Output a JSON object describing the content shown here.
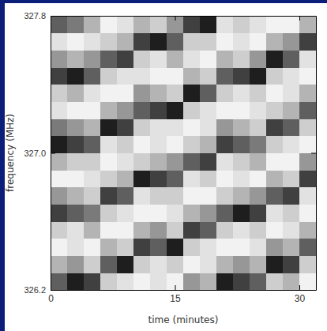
{
  "chart_data": {
    "type": "heatmap",
    "x_label": "time (minutes)",
    "y_label": "frequency (MHz)",
    "xlim": [
      0,
      32
    ],
    "ylim": [
      326.2,
      327.8
    ],
    "xticks": [
      0,
      15,
      30
    ],
    "yticks": [
      326.2,
      {
        "value": 327.0,
        "label": "327.0"
      },
      327.8
    ],
    "x_bins": [
      0,
      2,
      4,
      6,
      8,
      10,
      12,
      14,
      16,
      18,
      20,
      22,
      24,
      26,
      28,
      30,
      32
    ],
    "y_bins": [
      326.2,
      326.3,
      326.4,
      326.5,
      326.6,
      326.7,
      326.8,
      326.9,
      327.0,
      327.1,
      327.2,
      327.3,
      327.4,
      327.5,
      327.6,
      327.7,
      327.8
    ],
    "zlim": [
      0,
      1
    ],
    "cells": [
      [
        0.7,
        0.9,
        0.8,
        0.3,
        0.2,
        0.1,
        0.2,
        0.1,
        0.5,
        0.4,
        0.9,
        0.8,
        0.7,
        0.3,
        0.4,
        0.1
      ],
      [
        0.4,
        0.5,
        0.3,
        0.7,
        0.9,
        0.3,
        0.2,
        0.3,
        0.1,
        0.2,
        0.4,
        0.5,
        0.4,
        0.9,
        0.8,
        0.3
      ],
      [
        0.1,
        0.2,
        0.1,
        0.4,
        0.3,
        0.8,
        0.7,
        0.9,
        0.3,
        0.2,
        0.1,
        0.1,
        0.2,
        0.5,
        0.4,
        0.7
      ],
      [
        0.3,
        0.2,
        0.4,
        0.1,
        0.1,
        0.4,
        0.5,
        0.3,
        0.8,
        0.7,
        0.3,
        0.2,
        0.3,
        0.1,
        0.2,
        0.4
      ],
      [
        0.8,
        0.7,
        0.6,
        0.3,
        0.2,
        0.1,
        0.1,
        0.2,
        0.4,
        0.5,
        0.7,
        0.9,
        0.8,
        0.2,
        0.3,
        0.1
      ],
      [
        0.5,
        0.4,
        0.3,
        0.8,
        0.7,
        0.2,
        0.3,
        0.3,
        0.1,
        0.1,
        0.3,
        0.4,
        0.5,
        0.7,
        0.8,
        0.2
      ],
      [
        0.1,
        0.1,
        0.2,
        0.3,
        0.4,
        0.9,
        0.8,
        0.7,
        0.2,
        0.3,
        0.1,
        0.2,
        0.1,
        0.4,
        0.3,
        0.8
      ],
      [
        0.4,
        0.3,
        0.3,
        0.1,
        0.2,
        0.3,
        0.4,
        0.5,
        0.7,
        0.8,
        0.2,
        0.3,
        0.4,
        0.1,
        0.1,
        0.5
      ],
      [
        0.9,
        0.8,
        0.7,
        0.2,
        0.3,
        0.1,
        0.2,
        0.1,
        0.3,
        0.4,
        0.8,
        0.7,
        0.6,
        0.3,
        0.2,
        0.1
      ],
      [
        0.6,
        0.5,
        0.4,
        0.9,
        0.8,
        0.3,
        0.2,
        0.2,
        0.1,
        0.2,
        0.5,
        0.4,
        0.3,
        0.8,
        0.7,
        0.3
      ],
      [
        0.2,
        0.1,
        0.1,
        0.4,
        0.5,
        0.7,
        0.8,
        0.9,
        0.3,
        0.2,
        0.1,
        0.1,
        0.2,
        0.3,
        0.4,
        0.7
      ],
      [
        0.3,
        0.4,
        0.2,
        0.1,
        0.1,
        0.5,
        0.4,
        0.3,
        0.9,
        0.7,
        0.3,
        0.2,
        0.3,
        0.1,
        0.2,
        0.4
      ],
      [
        0.8,
        0.9,
        0.7,
        0.3,
        0.2,
        0.2,
        0.1,
        0.1,
        0.4,
        0.3,
        0.7,
        0.8,
        0.9,
        0.3,
        0.2,
        0.1
      ],
      [
        0.5,
        0.4,
        0.5,
        0.7,
        0.8,
        0.3,
        0.2,
        0.4,
        0.2,
        0.1,
        0.4,
        0.3,
        0.5,
        0.9,
        0.7,
        0.2
      ],
      [
        0.2,
        0.1,
        0.2,
        0.3,
        0.4,
        0.8,
        0.9,
        0.7,
        0.3,
        0.3,
        0.1,
        0.2,
        0.1,
        0.4,
        0.5,
        0.8
      ],
      [
        0.7,
        0.6,
        0.4,
        0.1,
        0.2,
        0.4,
        0.3,
        0.5,
        0.8,
        0.9,
        0.2,
        0.3,
        0.2,
        0.1,
        0.1,
        0.4
      ]
    ]
  }
}
